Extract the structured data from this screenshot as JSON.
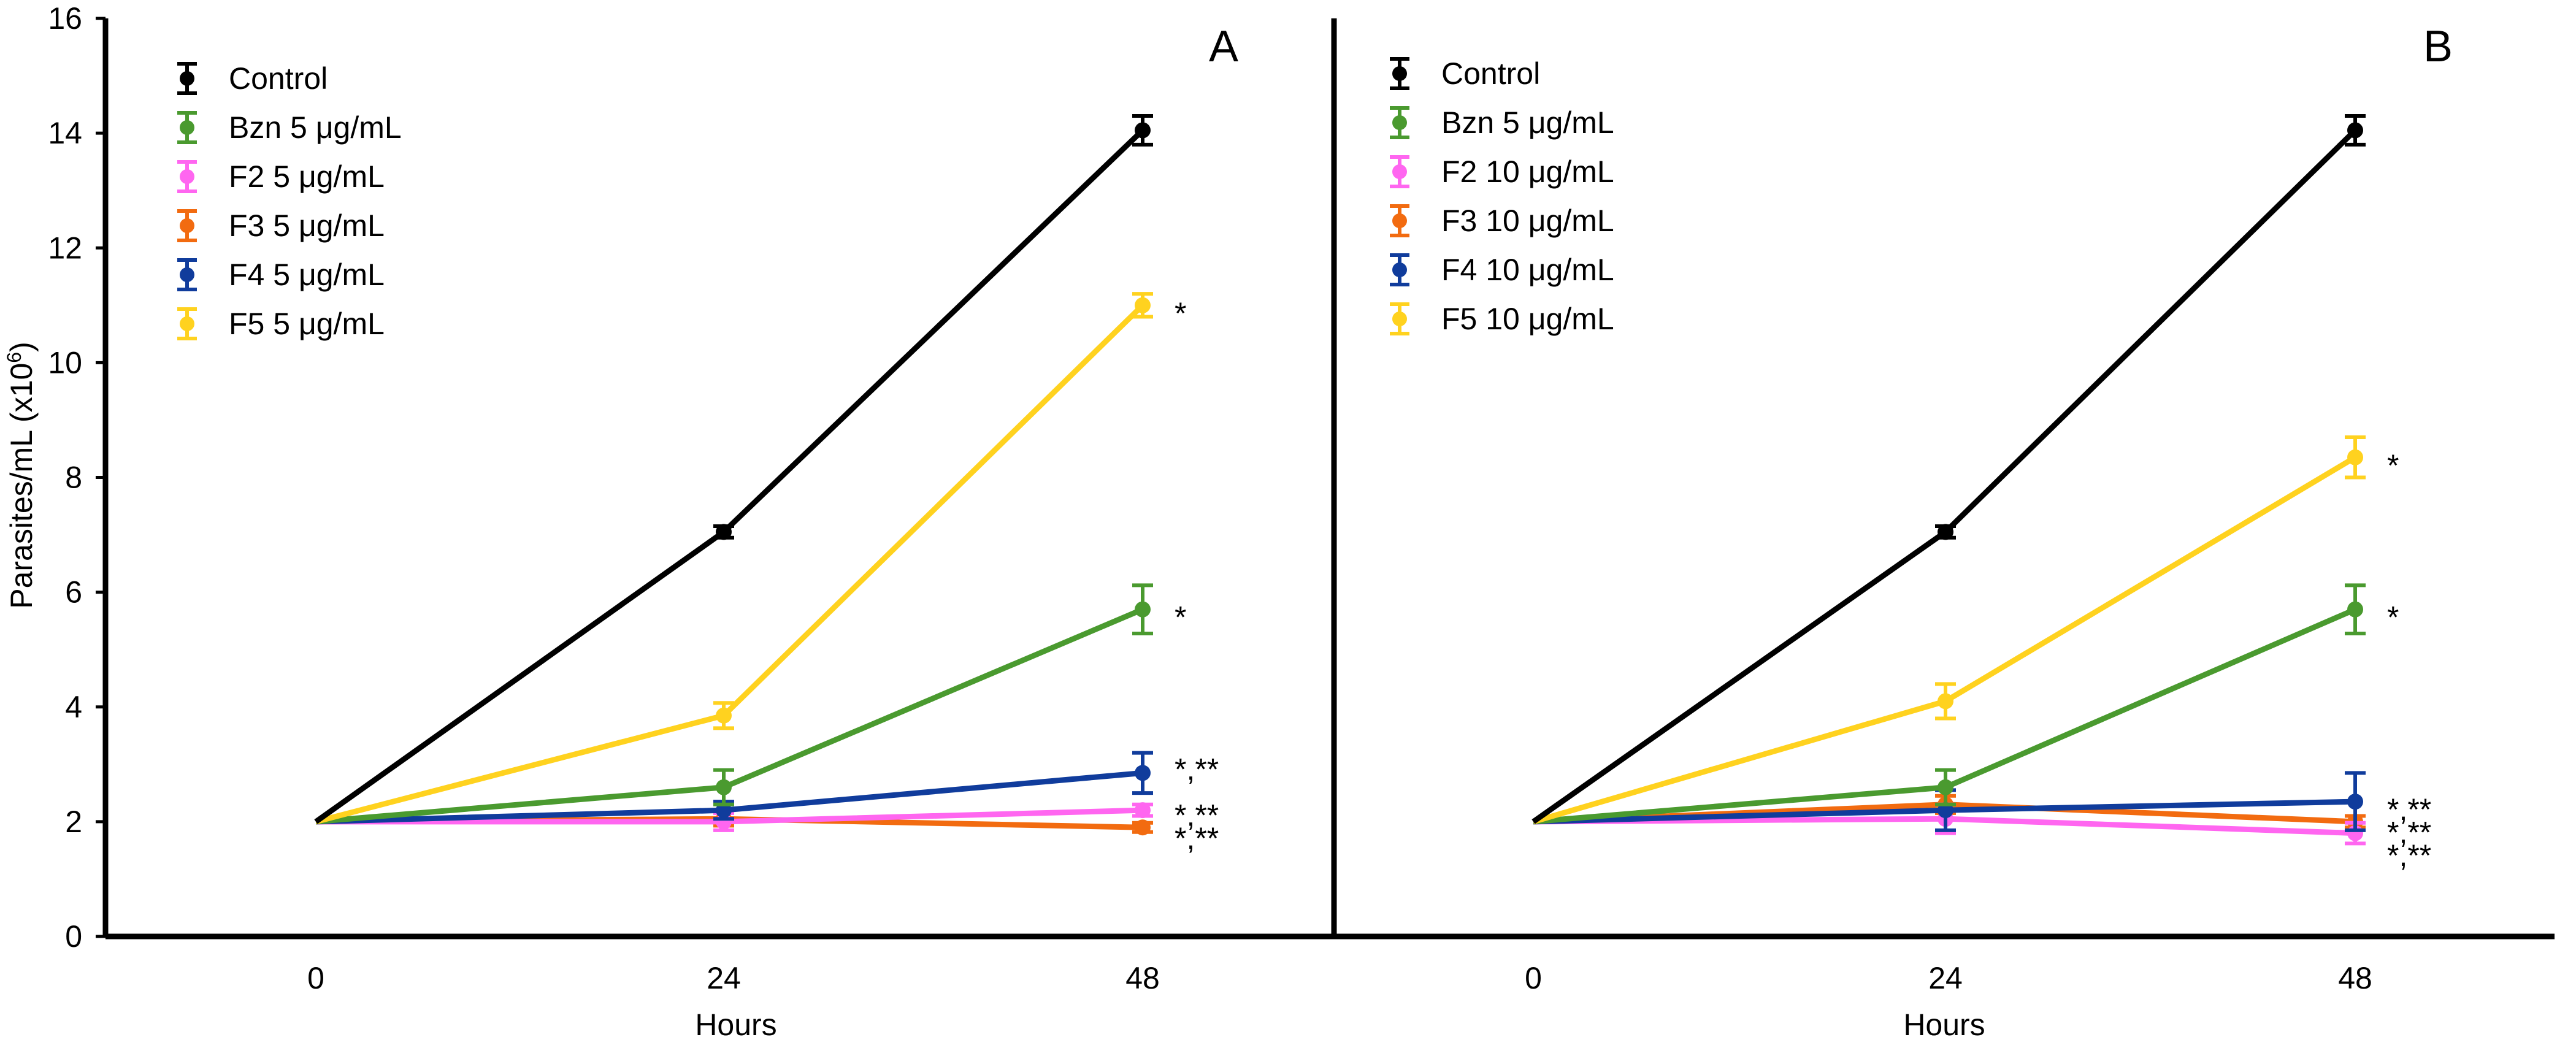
{
  "figure": {
    "ylabel_main": "Parasites/mL (x10",
    "ylabel_exp": "6",
    "ylabel_close": ")"
  },
  "chart_data": [
    {
      "type": "line",
      "panel_label": "A",
      "xlabel": "Hours",
      "x": [
        0,
        24,
        48
      ],
      "x_tick_labels": [
        "0",
        "24",
        "48"
      ],
      "ylim": [
        0,
        16
      ],
      "y_ticks": [
        0,
        2,
        4,
        6,
        8,
        10,
        12,
        14,
        16
      ],
      "grid": false,
      "legend_position": "top-left",
      "series": [
        {
          "name": "Control",
          "color": "#000000",
          "values": [
            2.0,
            7.05,
            14.05
          ],
          "errors": [
            0.03,
            0.1,
            0.25
          ]
        },
        {
          "name": "Bzn 5 μg/mL",
          "color": "#4a9a2f",
          "values": [
            2.0,
            2.6,
            5.7
          ],
          "errors": [
            0.03,
            0.3,
            0.42
          ]
        },
        {
          "name": "F2 5 μg/mL",
          "color": "#ff66f0",
          "values": [
            2.0,
            2.0,
            2.2
          ],
          "errors": [
            0.03,
            0.15,
            0.1
          ]
        },
        {
          "name": "F3 5 μg/mL",
          "color": "#f26b10",
          "values": [
            2.0,
            2.05,
            1.9
          ],
          "errors": [
            0.03,
            0.12,
            0.08
          ]
        },
        {
          "name": "F4 5 μg/mL",
          "color": "#103c9c",
          "values": [
            2.0,
            2.2,
            2.85
          ],
          "errors": [
            0.03,
            0.15,
            0.35
          ]
        },
        {
          "name": "F5 5 μg/mL",
          "color": "#ffd21f",
          "values": [
            2.0,
            3.85,
            11.0
          ],
          "errors": [
            0.03,
            0.22,
            0.2
          ]
        }
      ],
      "annotations": [
        {
          "text": "*",
          "x": 48,
          "y": 11.0
        },
        {
          "text": "*",
          "x": 48,
          "y": 5.7
        },
        {
          "text": "*,**",
          "x": 48,
          "y": 3.05
        },
        {
          "text": "*,**",
          "x": 48,
          "y": 2.25
        },
        {
          "text": "*,**",
          "x": 48,
          "y": 1.85
        }
      ]
    },
    {
      "type": "line",
      "panel_label": "B",
      "xlabel": "Hours",
      "x": [
        0,
        24,
        48
      ],
      "x_tick_labels": [
        "0",
        "24",
        "48"
      ],
      "ylim": [
        0,
        16
      ],
      "y_ticks": [
        0,
        2,
        4,
        6,
        8,
        10,
        12,
        14,
        16
      ],
      "grid": false,
      "legend_position": "top-left",
      "series": [
        {
          "name": "Control",
          "color": "#000000",
          "values": [
            2.0,
            7.05,
            14.05
          ],
          "errors": [
            0.03,
            0.1,
            0.25
          ]
        },
        {
          "name": "Bzn  5 μg/mL",
          "color": "#4a9a2f",
          "values": [
            2.0,
            2.6,
            5.7
          ],
          "errors": [
            0.03,
            0.3,
            0.42
          ]
        },
        {
          "name": "F2 10 μg/mL",
          "color": "#ff66f0",
          "values": [
            2.0,
            2.05,
            1.8
          ],
          "errors": [
            0.03,
            0.25,
            0.18
          ]
        },
        {
          "name": "F3 10 μg/mL",
          "color": "#f26b10",
          "values": [
            2.0,
            2.3,
            2.0
          ],
          "errors": [
            0.03,
            0.15,
            0.1
          ]
        },
        {
          "name": "F4 10 μg/mL",
          "color": "#103c9c",
          "values": [
            2.0,
            2.2,
            2.35
          ],
          "errors": [
            0.03,
            0.35,
            0.5
          ]
        },
        {
          "name": "F5 10 μg/mL",
          "color": "#ffd21f",
          "values": [
            2.0,
            4.1,
            8.35
          ],
          "errors": [
            0.03,
            0.3,
            0.35
          ]
        }
      ],
      "annotations": [
        {
          "text": "*",
          "x": 48,
          "y": 8.35
        },
        {
          "text": "*",
          "x": 48,
          "y": 5.7
        },
        {
          "text": "*,**",
          "x": 48,
          "y": 2.35
        },
        {
          "text": "*,**",
          "x": 48,
          "y": 1.95
        },
        {
          "text": "*,**",
          "x": 48,
          "y": 1.55
        }
      ]
    }
  ]
}
